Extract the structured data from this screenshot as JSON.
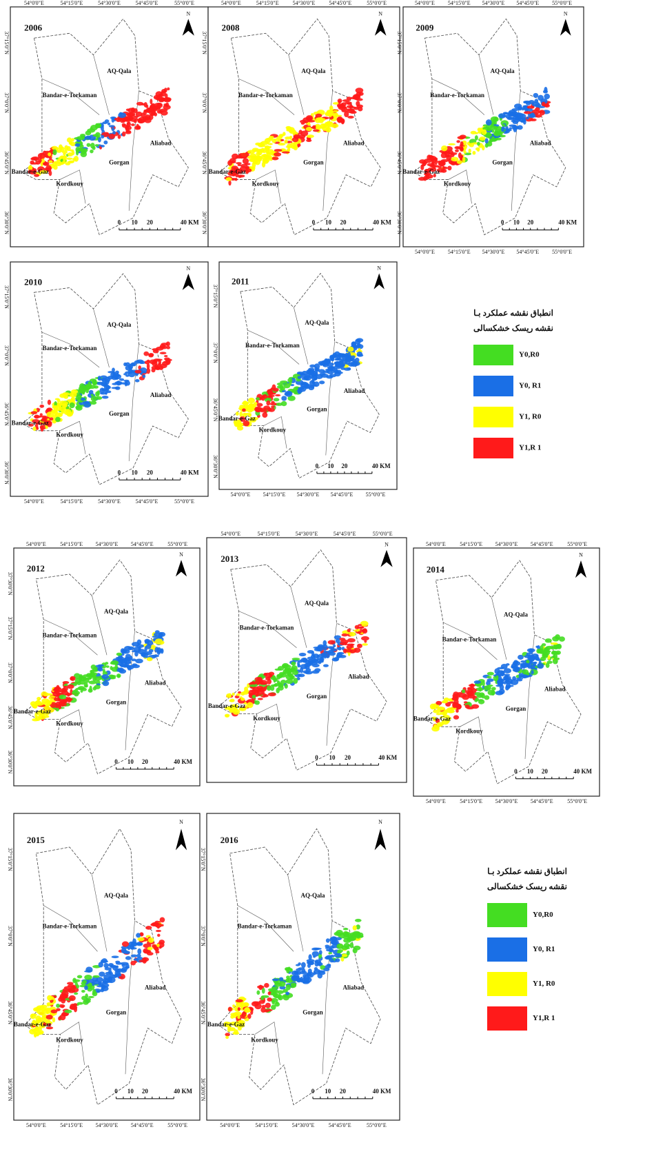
{
  "maps": [
    {
      "year": "2006",
      "lon_top": [
        "54°0'0\"E",
        "54°15'0\"E",
        "54°30'0\"E",
        "54°45'0\"E",
        "55°0'0\"E"
      ],
      "lat": [
        "37°15'0\"N",
        "37°0'0\"N",
        "36°45'0\"N",
        "36°30'0\"N"
      ]
    },
    {
      "year": "2008",
      "lon_top": [
        "54°0'0\"E",
        "54°15'0\"E",
        "54°30'0\"E",
        "54°45'0\"E",
        "55°0'0\"E"
      ],
      "lat": [
        "37°15'0\"N",
        "37°0'0\"N",
        "36°45'0\"N",
        "36°30'0\"N"
      ]
    },
    {
      "year": "2009",
      "lon_top": [
        "54°0'0\"E",
        "54°15'0\"E",
        "54°30'0\"E",
        "54°45'0\"E",
        "55°0'0\"E"
      ],
      "lon_bottom": [
        "54°0'0\"E",
        "54°15'0\"E",
        "54°30'0\"E",
        "54°45'0\"E",
        "55°0'0\"E"
      ],
      "lat": [
        "37°15'0\"N",
        "37°0'0\"N",
        "36°45'0\"N",
        "36°30'0\"N"
      ]
    },
    {
      "year": "2010",
      "lon_bottom": [
        "54°0'0\"E",
        "54°15'0\"E",
        "54°30'0\"E",
        "54°45'0\"E",
        "55°0'0\"E"
      ],
      "lat": [
        "37°15'0\"N",
        "37°0'0\"N",
        "36°45'0\"N",
        "36°30'0\"N"
      ]
    },
    {
      "year": "2011",
      "lon_bottom": [
        "54°0'0\"E",
        "54°15'0\"E",
        "54°30'0\"E",
        "54°45'0\"E",
        "55°0'0\"E"
      ],
      "lat": [
        "37°15'0\"N",
        "37°0'0\"N",
        "36°45'0\"N",
        "36°30'0\"N"
      ]
    },
    {
      "year": "2012",
      "lon_top": [
        "54°0'0\"E",
        "54°15'0\"E",
        "54°30'0\"E",
        "54°45'0\"E",
        "55°0'0\"E"
      ],
      "lat": [
        "37°30'0\"N",
        "37°15'0\"N",
        "37°0'0\"N",
        "36°45'0\"N",
        "36°30'0\"N"
      ]
    },
    {
      "year": "2013",
      "lon_top": [
        "54°0'0\"E",
        "54°15'0\"E",
        "54°30'0\"E",
        "54°45'0\"E",
        "55°0'0\"E"
      ]
    },
    {
      "year": "2014",
      "lon_top": [
        "54°0'0\"E",
        "54°15'0\"E",
        "54°30'0\"E",
        "54°45'0\"E",
        "55°0'0\"E"
      ],
      "lon_bottom": [
        "54°0'0\"E",
        "54°15'0\"E",
        "54°30'0\"E",
        "54°45'0\"E",
        "55°0'0\"E"
      ]
    },
    {
      "year": "2015",
      "lon_bottom": [
        "54°0'0\"E",
        "54°15'0\"E",
        "54°30'0\"E",
        "54°45'0\"E",
        "55°0'0\"E"
      ],
      "lat": [
        "37°15'0\"N",
        "37°0'0\"N",
        "36°45'0\"N",
        "36°30'0\"N"
      ]
    },
    {
      "year": "2016",
      "lon_bottom": [
        "54°0'0\"E",
        "54°15'0\"E",
        "54°30'0\"E",
        "54°45'0\"E",
        "55°0'0\"E"
      ],
      "lat": [
        "37°15'0\"N",
        "37°0'0\"N",
        "36°45'0\"N",
        "36°30'0\"N"
      ]
    }
  ],
  "places": [
    "AQ-Qala",
    "Bandar-e-Torkaman",
    "Aliabad",
    "Gorgan",
    "Bandar-e-Gaz",
    "Kordkouy"
  ],
  "scale": [
    "0",
    "10",
    "20",
    "40 KM"
  ],
  "north": "N",
  "legend": {
    "title": [
      "انطباق نقشه عملکرد بـا",
      "نقشه ریسک خشکسالی"
    ],
    "items": [
      {
        "label": "Y0,R0",
        "color": "#44dd22"
      },
      {
        "label": "Y0, R1",
        "color": "#1a6fe6"
      },
      {
        "label": "Y1, R0",
        "color": "#ffff00"
      },
      {
        "label": "Y1,R 1",
        "color": "#ff1a1a"
      }
    ]
  }
}
